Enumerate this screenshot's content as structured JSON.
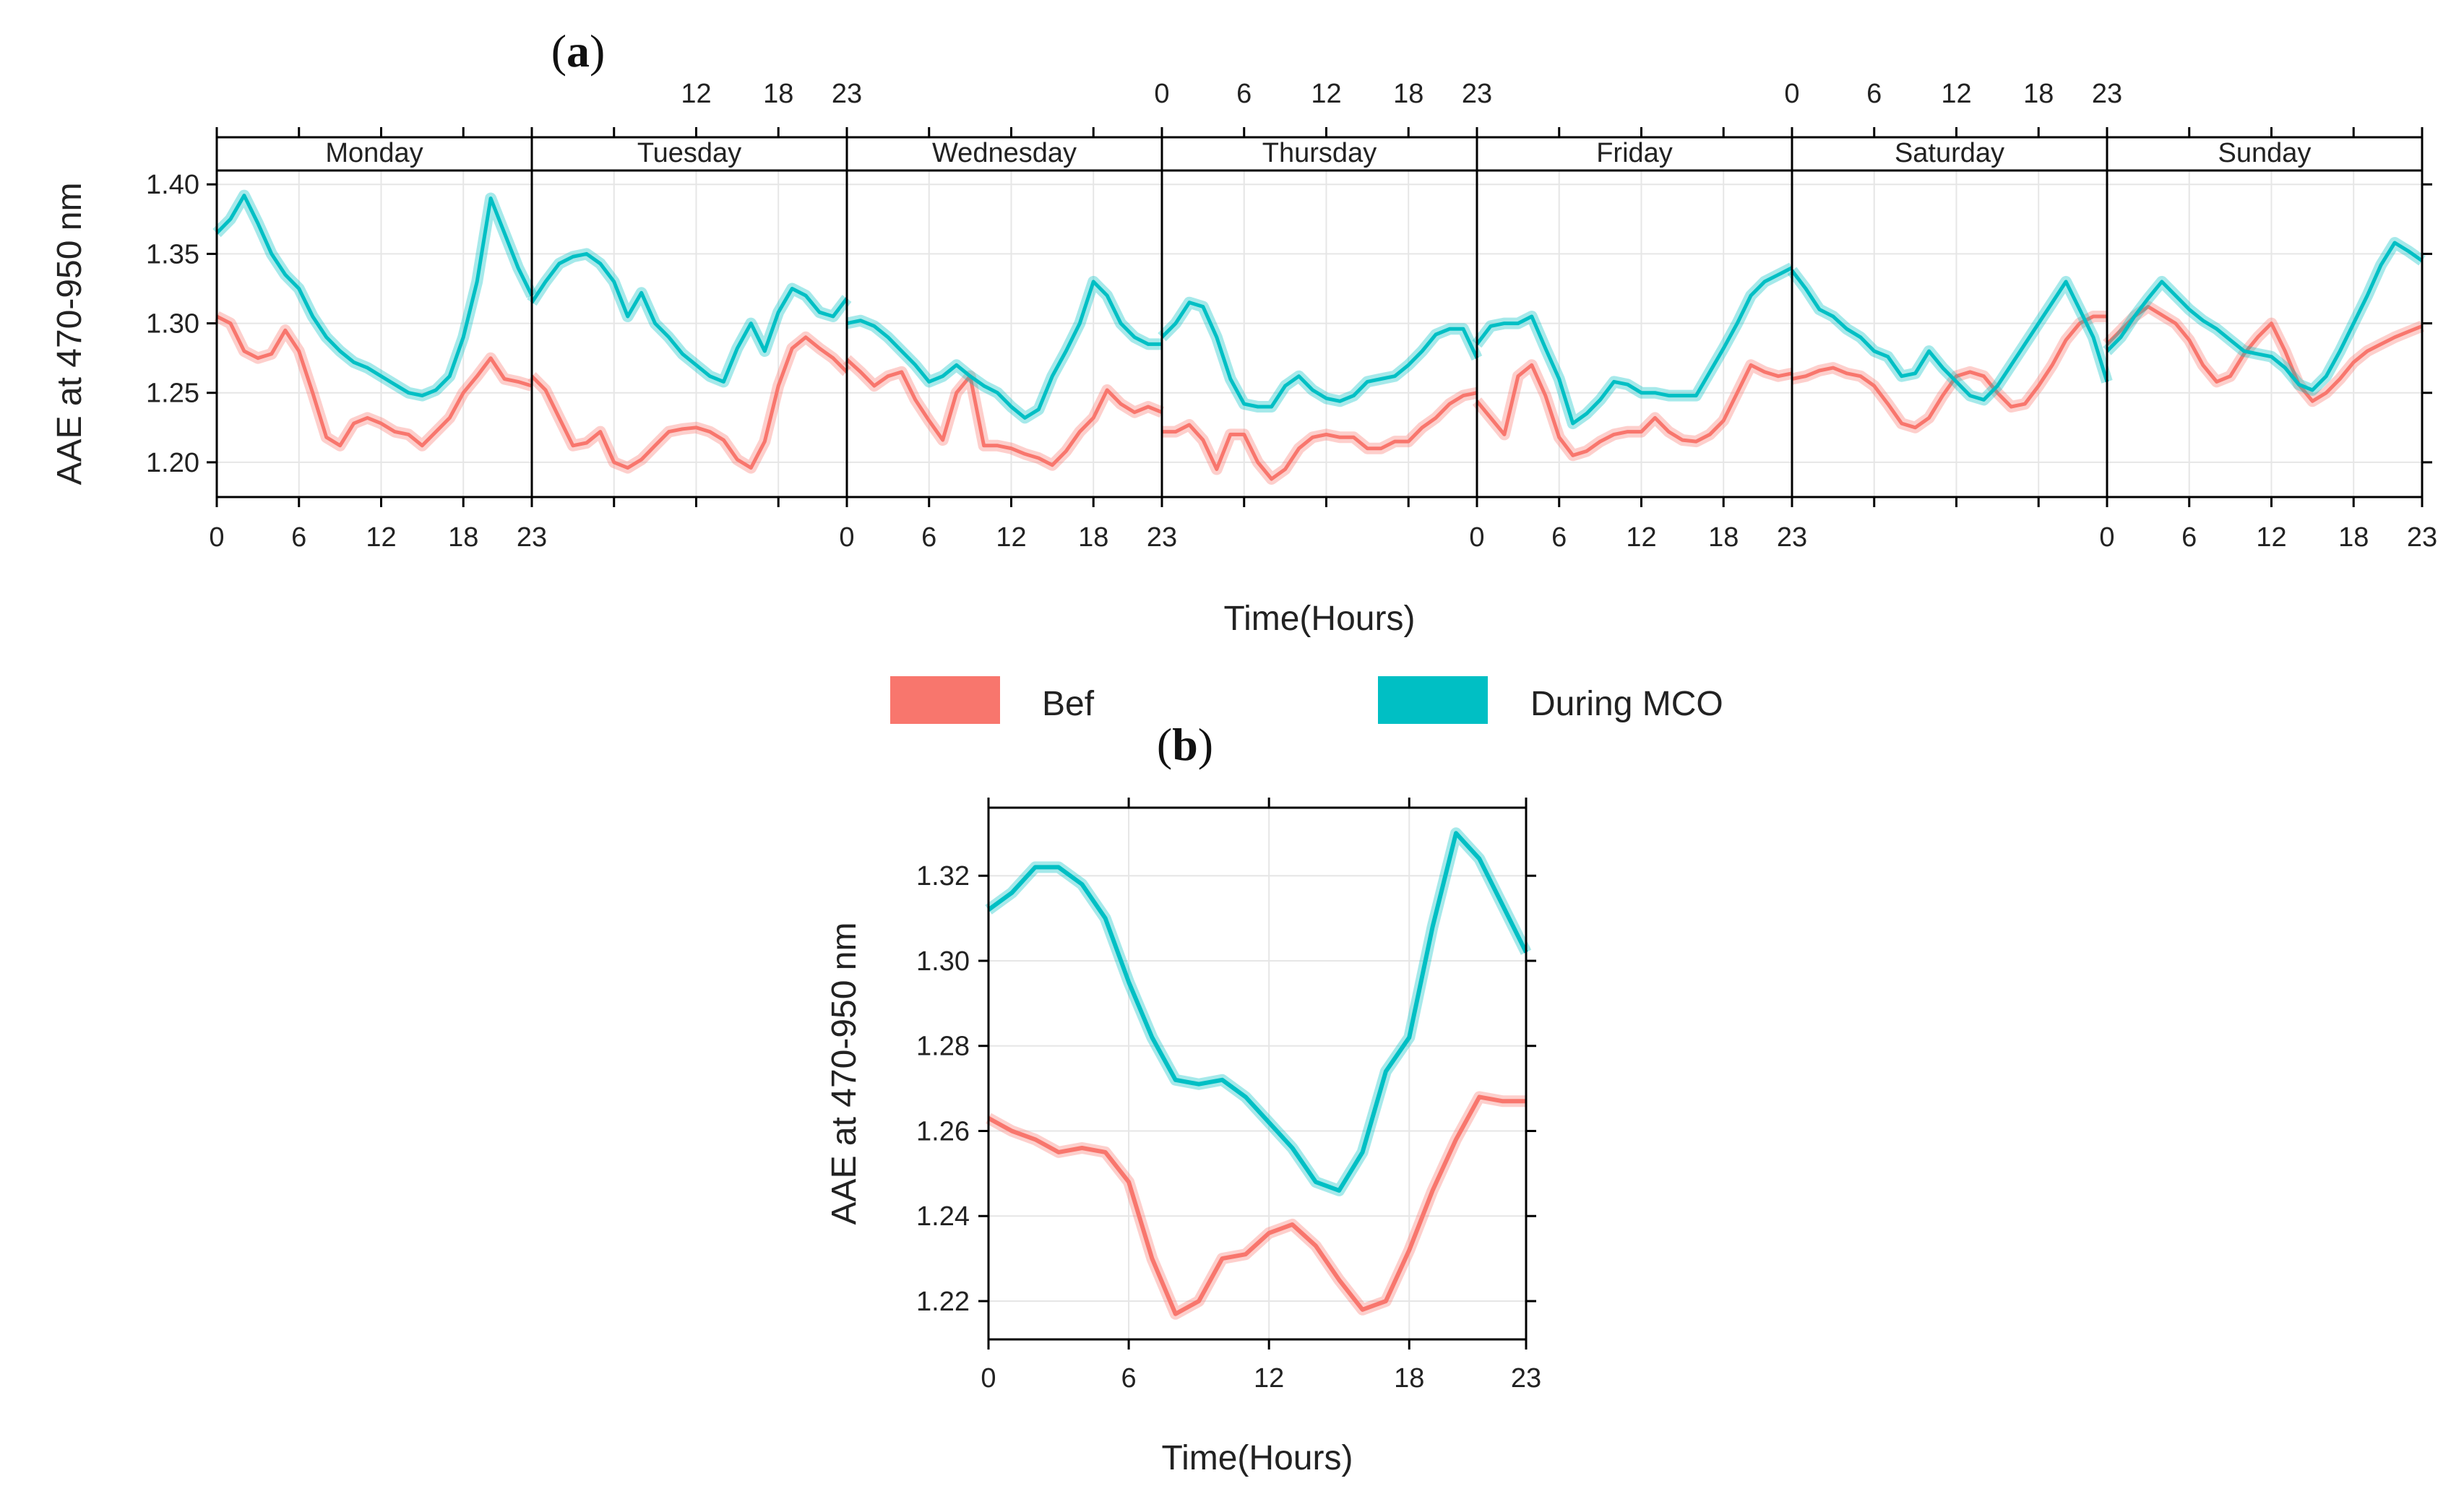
{
  "colors": {
    "before": "#F8766D",
    "during": "#00BFC4",
    "grid": "#E6E6E6",
    "axis": "#000000",
    "strip": "#FFFFFF"
  },
  "legend": {
    "before_label": "Bef",
    "during_label": "During MCO"
  },
  "chart_data": [
    {
      "id": "a",
      "type": "line",
      "panel_label": "a",
      "ylabel": "AAE at 470-950 nm",
      "xlabel": "Time(Hours)",
      "ylim": [
        1.175,
        1.41
      ],
      "yticks": [
        1.2,
        1.25,
        1.3,
        1.35,
        1.4
      ],
      "ytick_labels": [
        "1.20",
        "1.25",
        "1.30",
        "1.35",
        "1.40"
      ],
      "xticks": [
        0,
        6,
        12,
        18,
        23
      ],
      "xtick_labels": [
        "0",
        "6",
        "12",
        "18",
        "23"
      ],
      "panels": [
        "Monday",
        "Tuesday",
        "Wednesday",
        "Thursday",
        "Friday",
        "Saturday",
        "Sunday"
      ],
      "series": [
        {
          "name": "Bef",
          "values": [
            [
              1.305,
              1.3,
              1.28,
              1.275,
              1.278,
              1.295,
              1.28,
              1.25,
              1.218,
              1.212,
              1.228,
              1.232,
              1.228,
              1.222,
              1.22,
              1.212,
              1.222,
              1.232,
              1.25,
              1.262,
              1.275,
              1.26,
              1.258,
              1.255
            ],
            [
              1.262,
              1.252,
              1.232,
              1.212,
              1.214,
              1.222,
              1.2,
              1.196,
              1.202,
              1.212,
              1.222,
              1.224,
              1.225,
              1.222,
              1.216,
              1.202,
              1.196,
              1.215,
              1.255,
              1.282,
              1.29,
              1.282,
              1.275,
              1.265
            ],
            [
              1.274,
              1.265,
              1.255,
              1.262,
              1.265,
              1.245,
              1.23,
              1.216,
              1.25,
              1.262,
              1.212,
              1.212,
              1.21,
              1.206,
              1.203,
              1.198,
              1.208,
              1.222,
              1.232,
              1.252,
              1.242,
              1.236,
              1.24,
              1.236
            ],
            [
              1.222,
              1.222,
              1.227,
              1.216,
              1.195,
              1.22,
              1.22,
              1.2,
              1.188,
              1.195,
              1.21,
              1.218,
              1.22,
              1.218,
              1.218,
              1.21,
              1.21,
              1.215,
              1.215,
              1.225,
              1.232,
              1.242,
              1.248,
              1.25
            ],
            [
              1.244,
              1.232,
              1.22,
              1.262,
              1.27,
              1.248,
              1.218,
              1.205,
              1.208,
              1.215,
              1.22,
              1.222,
              1.222,
              1.232,
              1.222,
              1.216,
              1.215,
              1.22,
              1.23,
              1.25,
              1.27,
              1.265,
              1.262,
              1.264
            ],
            [
              1.26,
              1.262,
              1.266,
              1.268,
              1.264,
              1.262,
              1.255,
              1.242,
              1.228,
              1.225,
              1.232,
              1.248,
              1.262,
              1.265,
              1.262,
              1.25,
              1.24,
              1.242,
              1.255,
              1.27,
              1.288,
              1.3,
              1.305,
              1.305
            ],
            [
              1.285,
              1.295,
              1.305,
              1.312,
              1.306,
              1.3,
              1.288,
              1.27,
              1.258,
              1.262,
              1.278,
              1.29,
              1.3,
              1.28,
              1.256,
              1.244,
              1.25,
              1.26,
              1.272,
              1.28,
              1.285,
              1.29,
              1.294,
              1.298
            ]
          ]
        },
        {
          "name": "During MCO",
          "values": [
            [
              1.365,
              1.375,
              1.392,
              1.372,
              1.35,
              1.335,
              1.325,
              1.305,
              1.29,
              1.28,
              1.272,
              1.268,
              1.262,
              1.256,
              1.25,
              1.248,
              1.252,
              1.262,
              1.29,
              1.33,
              1.39,
              1.365,
              1.34,
              1.32
            ],
            [
              1.315,
              1.33,
              1.343,
              1.348,
              1.35,
              1.343,
              1.33,
              1.305,
              1.322,
              1.3,
              1.29,
              1.278,
              1.27,
              1.262,
              1.258,
              1.282,
              1.3,
              1.28,
              1.308,
              1.325,
              1.32,
              1.308,
              1.305,
              1.318
            ],
            [
              1.3,
              1.302,
              1.298,
              1.29,
              1.28,
              1.27,
              1.258,
              1.262,
              1.27,
              1.262,
              1.255,
              1.25,
              1.24,
              1.232,
              1.238,
              1.262,
              1.28,
              1.3,
              1.33,
              1.32,
              1.3,
              1.29,
              1.285,
              1.285
            ],
            [
              1.29,
              1.3,
              1.315,
              1.312,
              1.29,
              1.26,
              1.242,
              1.24,
              1.24,
              1.255,
              1.262,
              1.252,
              1.246,
              1.244,
              1.248,
              1.258,
              1.26,
              1.262,
              1.27,
              1.28,
              1.292,
              1.296,
              1.296,
              1.275
            ],
            [
              1.285,
              1.298,
              1.3,
              1.3,
              1.305,
              1.282,
              1.26,
              1.228,
              1.235,
              1.245,
              1.258,
              1.256,
              1.25,
              1.25,
              1.248,
              1.248,
              1.248,
              1.265,
              1.282,
              1.3,
              1.32,
              1.33,
              1.335,
              1.34
            ],
            [
              1.338,
              1.325,
              1.31,
              1.305,
              1.296,
              1.29,
              1.28,
              1.276,
              1.262,
              1.264,
              1.28,
              1.268,
              1.258,
              1.248,
              1.245,
              1.255,
              1.27,
              1.285,
              1.3,
              1.315,
              1.33,
              1.31,
              1.29,
              1.258
            ],
            [
              1.28,
              1.29,
              1.305,
              1.318,
              1.33,
              1.32,
              1.31,
              1.302,
              1.296,
              1.288,
              1.28,
              1.278,
              1.276,
              1.268,
              1.256,
              1.252,
              1.262,
              1.28,
              1.3,
              1.32,
              1.342,
              1.358,
              1.352,
              1.345
            ]
          ]
        }
      ]
    },
    {
      "id": "b",
      "type": "line",
      "panel_label": "b",
      "ylabel": "AAE at 470-950 nm",
      "xlabel": "Time(Hours)",
      "ylim": [
        1.211,
        1.336
      ],
      "yticks": [
        1.22,
        1.24,
        1.26,
        1.28,
        1.3,
        1.32
      ],
      "ytick_labels": [
        "1.22",
        "1.24",
        "1.26",
        "1.28",
        "1.30",
        "1.32"
      ],
      "xticks": [
        0,
        6,
        12,
        18,
        23
      ],
      "xtick_labels": [
        "0",
        "6",
        "12",
        "18",
        "23"
      ],
      "series": [
        {
          "name": "Bef",
          "x": [
            0,
            1,
            2,
            3,
            4,
            5,
            6,
            7,
            8,
            9,
            10,
            11,
            12,
            13,
            14,
            15,
            16,
            17,
            18,
            19,
            20,
            21,
            22,
            23
          ],
          "values": [
            1.263,
            1.26,
            1.258,
            1.255,
            1.256,
            1.255,
            1.248,
            1.23,
            1.217,
            1.22,
            1.23,
            1.231,
            1.236,
            1.238,
            1.233,
            1.225,
            1.218,
            1.22,
            1.232,
            1.246,
            1.258,
            1.268,
            1.267,
            1.267
          ]
        },
        {
          "name": "During MCO",
          "x": [
            0,
            1,
            2,
            3,
            4,
            5,
            6,
            7,
            8,
            9,
            10,
            11,
            12,
            13,
            14,
            15,
            16,
            17,
            18,
            19,
            20,
            21,
            22,
            23
          ],
          "values": [
            1.312,
            1.316,
            1.322,
            1.322,
            1.318,
            1.31,
            1.295,
            1.282,
            1.272,
            1.271,
            1.272,
            1.268,
            1.262,
            1.256,
            1.248,
            1.246,
            1.255,
            1.274,
            1.282,
            1.308,
            1.33,
            1.324,
            1.313,
            1.302
          ]
        }
      ]
    }
  ]
}
